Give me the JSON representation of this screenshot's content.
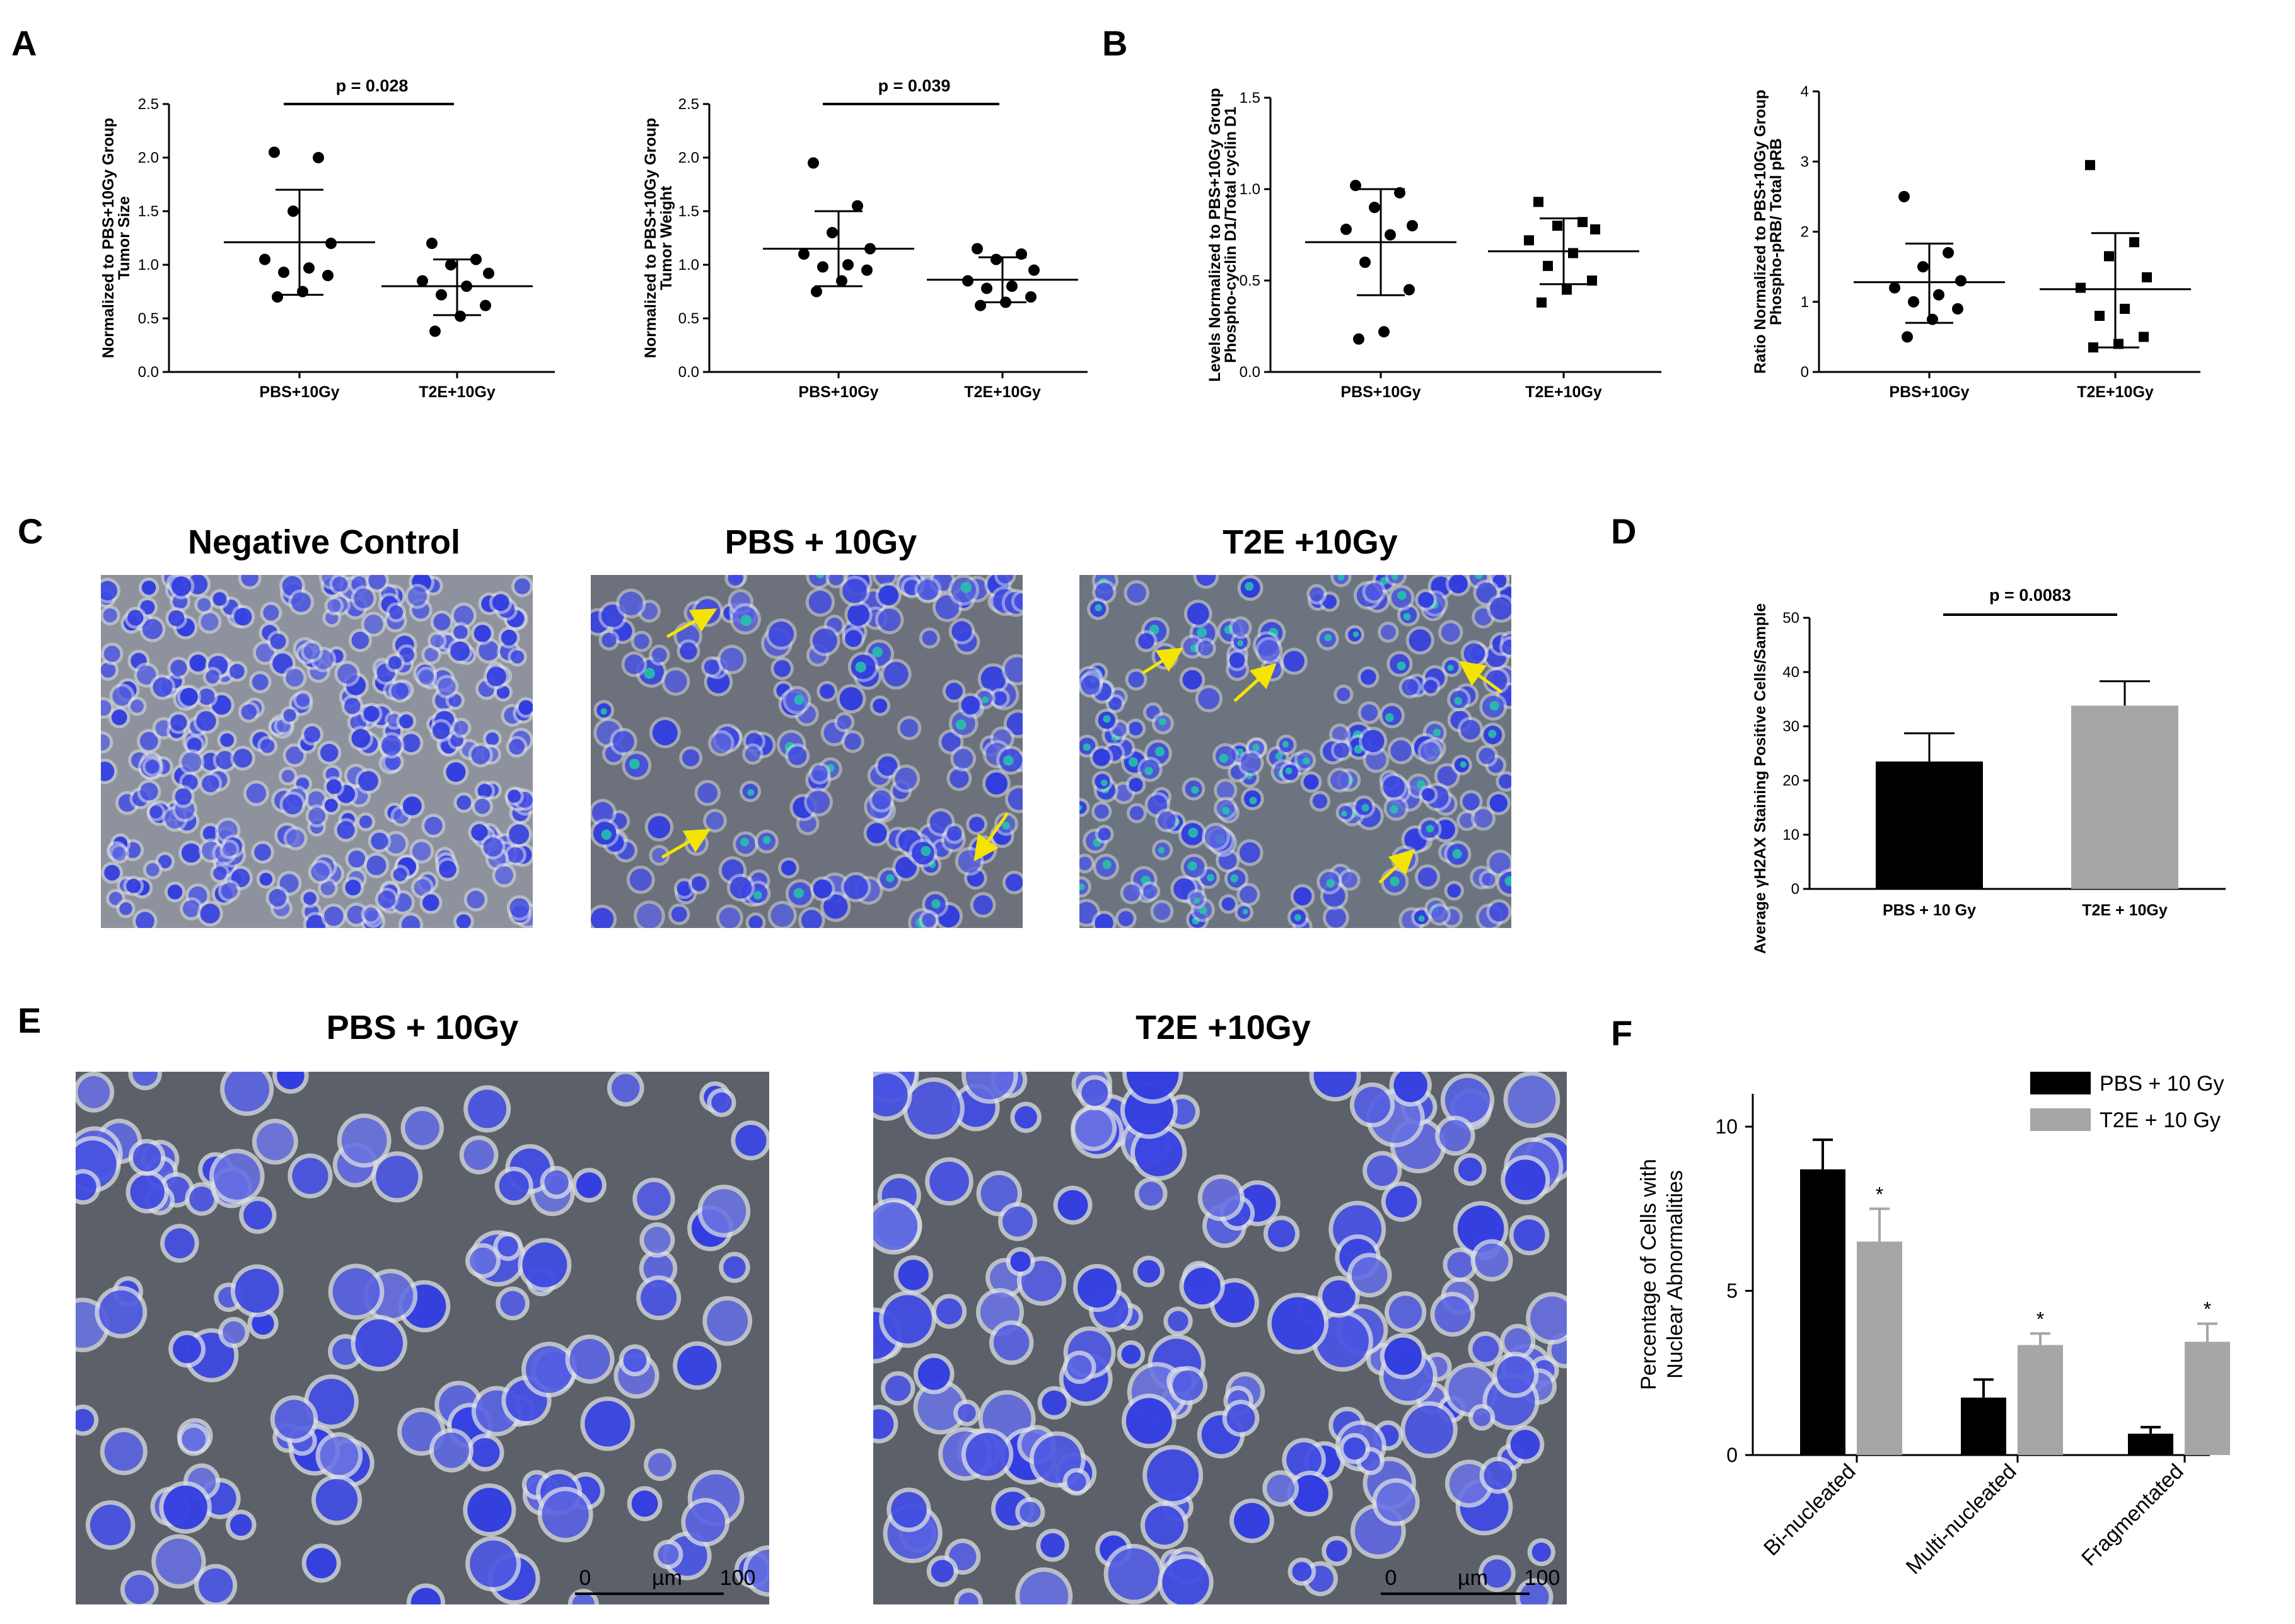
{
  "panel_labels": {
    "A": "A",
    "B": "B",
    "C": "C",
    "D": "D",
    "E": "E",
    "F": "F"
  },
  "images": {
    "c_titles": [
      "Negative Control",
      "PBS + 10Gy",
      "T2E +10Gy"
    ],
    "e_titles": [
      "PBS + 10Gy",
      "T2E +10Gy"
    ],
    "scalebar": {
      "start": "0",
      "unit": "µm",
      "end": "100"
    },
    "colors": {
      "cell_bg": "#5c6068",
      "nucleus": "#2a36e0",
      "gh2ax": "#22c8a8",
      "arrow": "#f5e400"
    }
  },
  "chart_data": [
    {
      "id": "A1",
      "type": "scatter",
      "ylabel": "Tumor Size",
      "ylabel2": "Normalized to PBS+10Gy Group",
      "ylim": [
        0,
        2.5
      ],
      "yticks": [
        "0.0",
        "0.5",
        "1.0",
        "1.5",
        "2.0",
        "2.5"
      ],
      "categories": [
        "PBS+10Gy",
        "T2E+10Gy"
      ],
      "series": [
        {
          "name": "PBS+10Gy",
          "marker": "circle",
          "points": [
            2.05,
            2.0,
            1.5,
            1.2,
            1.05,
            0.97,
            0.93,
            0.9,
            0.75,
            0.7
          ],
          "mean": 1.21,
          "sd_low": 0.72,
          "sd_high": 1.7
        },
        {
          "name": "T2E+10Gy",
          "marker": "circle",
          "points": [
            1.2,
            1.05,
            1.0,
            0.92,
            0.85,
            0.8,
            0.72,
            0.62,
            0.52,
            0.38
          ],
          "mean": 0.8,
          "sd_low": 0.53,
          "sd_high": 1.05
        }
      ],
      "pvalue": "p = 0.028"
    },
    {
      "id": "A2",
      "type": "scatter",
      "ylabel": "Tumor Weight",
      "ylabel2": "Normalized to PBS+10Gy Group",
      "ylim": [
        0,
        2.5
      ],
      "yticks": [
        "0.0",
        "0.5",
        "1.0",
        "1.5",
        "2.0",
        "2.5"
      ],
      "categories": [
        "PBS+10Gy",
        "T2E+10Gy"
      ],
      "series": [
        {
          "name": "PBS+10Gy",
          "marker": "circle",
          "points": [
            1.95,
            1.55,
            1.3,
            1.15,
            1.1,
            1.0,
            0.98,
            0.95,
            0.85,
            0.75
          ],
          "mean": 1.15,
          "sd_low": 0.8,
          "sd_high": 1.5
        },
        {
          "name": "T2E+10Gy",
          "marker": "circle",
          "points": [
            1.15,
            1.1,
            1.05,
            0.95,
            0.85,
            0.8,
            0.78,
            0.7,
            0.65,
            0.62
          ],
          "mean": 0.86,
          "sd_low": 0.65,
          "sd_high": 1.07
        }
      ],
      "pvalue": "p = 0.039"
    },
    {
      "id": "B1",
      "type": "scatter",
      "ylabel": "Phospho-cyclin D1/Total cyclin D1",
      "ylabel2": "Levels Normalized to PBS+10Gy Group",
      "ylim": [
        0,
        1.5
      ],
      "yticks": [
        "0.0",
        "0.5",
        "1.0",
        "1.5"
      ],
      "categories": [
        "PBS+10Gy",
        "T2E+10Gy"
      ],
      "series": [
        {
          "name": "PBS+10Gy",
          "marker": "circle",
          "points": [
            1.02,
            0.98,
            0.9,
            0.8,
            0.78,
            0.75,
            0.6,
            0.45,
            0.22,
            0.18
          ],
          "mean": 0.71,
          "sd_low": 0.42,
          "sd_high": 1.0
        },
        {
          "name": "T2E+10Gy",
          "marker": "square",
          "points": [
            0.93,
            0.82,
            0.8,
            0.78,
            0.72,
            0.65,
            0.58,
            0.5,
            0.45,
            0.38
          ],
          "mean": 0.66,
          "sd_low": 0.48,
          "sd_high": 0.84
        }
      ]
    },
    {
      "id": "B2",
      "type": "scatter",
      "ylabel": "Phospho-pRB/ Total pRB",
      "ylabel2": "Ratio Normalized to PBS+10Gy Group",
      "ylim": [
        0,
        4
      ],
      "yticks": [
        "0",
        "1",
        "2",
        "3",
        "4"
      ],
      "categories": [
        "PBS+10Gy",
        "T2E+10Gy"
      ],
      "series": [
        {
          "name": "PBS+10Gy",
          "marker": "circle",
          "points": [
            2.5,
            1.7,
            1.5,
            1.3,
            1.2,
            1.1,
            1.0,
            0.9,
            0.75,
            0.5
          ],
          "mean": 1.28,
          "sd_low": 0.7,
          "sd_high": 1.83
        },
        {
          "name": "T2E+10Gy",
          "marker": "square",
          "points": [
            2.95,
            1.85,
            1.65,
            1.35,
            1.2,
            0.9,
            0.8,
            0.5,
            0.4,
            0.35
          ],
          "mean": 1.18,
          "sd_low": 0.35,
          "sd_high": 1.98
        }
      ]
    },
    {
      "id": "D",
      "type": "bar",
      "ylabel": "Average γH2AX Staining Positive Cells/Sample",
      "ylim": [
        0,
        50
      ],
      "yticks": [
        "0",
        "10",
        "20",
        "30",
        "40",
        "50"
      ],
      "categories": [
        "PBS + 10 Gy",
        "T2E + 10Gy"
      ],
      "values": [
        23.5,
        33.8
      ],
      "errors": [
        5.2,
        4.5
      ],
      "colors": [
        "#000000",
        "#a6a6a6"
      ],
      "pvalue": "p = 0.0083"
    },
    {
      "id": "F",
      "type": "bar",
      "ylabel": "Percentage of Cells with",
      "ylabel2": "Nuclear Abnormalities",
      "ylim": [
        0,
        11
      ],
      "yticks": [
        "0",
        "5",
        "10"
      ],
      "categories": [
        "Bi-nucleated",
        "Multi-nucleated",
        "Fragmentated"
      ],
      "series": [
        {
          "name": "PBS + 10 Gy",
          "values": [
            8.7,
            1.75,
            0.65
          ],
          "errors": [
            0.9,
            0.55,
            0.2
          ],
          "color": "#000000"
        },
        {
          "name": "T2E + 10 Gy",
          "values": [
            6.5,
            3.35,
            3.45
          ],
          "errors": [
            1.0,
            0.35,
            0.55
          ],
          "color": "#a6a6a6",
          "significance": [
            "*",
            "*",
            "*"
          ]
        }
      ],
      "legend": "top-right"
    }
  ]
}
